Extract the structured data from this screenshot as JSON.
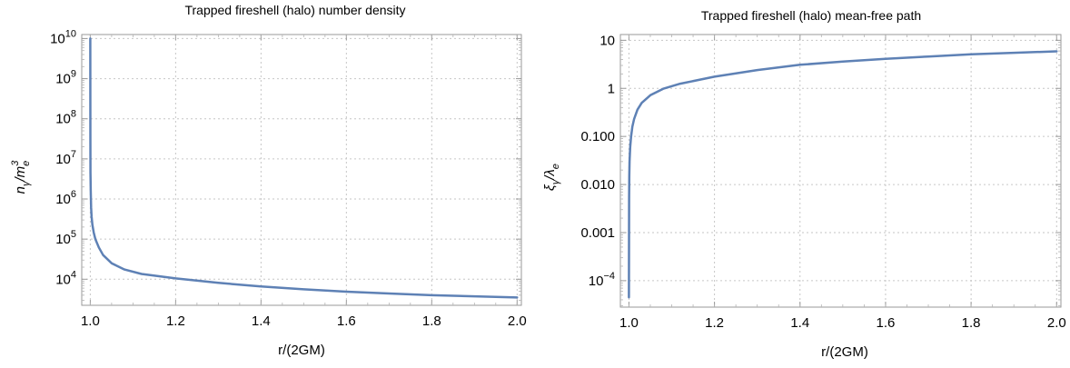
{
  "chart_data": [
    {
      "type": "line",
      "title": "Trapped fireshell (halo) number density",
      "xlabel": "r/(2GM)",
      "ylabel_parts": {
        "n": "n",
        "gamma": "γ",
        "slash": "/m",
        "e": "e",
        "three": "3"
      },
      "y_scale": "log",
      "xlim": [
        0.98,
        2.01
      ],
      "ylim_log10": [
        3.35,
        10.1
      ],
      "x_ticks": [
        {
          "v": 1.0,
          "label": "1.0"
        },
        {
          "v": 1.2,
          "label": "1.2"
        },
        {
          "v": 1.4,
          "label": "1.4"
        },
        {
          "v": 1.6,
          "label": "1.6"
        },
        {
          "v": 1.8,
          "label": "1.8"
        },
        {
          "v": 2.0,
          "label": "2.0"
        }
      ],
      "y_ticks": [
        {
          "e": 4,
          "base": "10",
          "exp": "4"
        },
        {
          "e": 5,
          "base": "10",
          "exp": "5"
        },
        {
          "e": 6,
          "base": "10",
          "exp": "6"
        },
        {
          "e": 7,
          "base": "10",
          "exp": "7"
        },
        {
          "e": 8,
          "base": "10",
          "exp": "8"
        },
        {
          "e": 9,
          "base": "10",
          "exp": "9"
        },
        {
          "e": 10,
          "base": "10",
          "exp": "10"
        }
      ],
      "grid": true,
      "series": [
        {
          "color": "#5e81b5",
          "x": [
            1.0,
            1.0002,
            1.0005,
            1.001,
            1.002,
            1.003,
            1.005,
            1.008,
            1.012,
            1.02,
            1.03,
            1.05,
            1.08,
            1.12,
            1.2,
            1.3,
            1.4,
            1.5,
            1.6,
            1.7,
            1.8,
            1.9,
            2.0
          ],
          "y": [
            10000000000,
            35000000,
            4500000,
            1600000,
            620000,
            370000,
            230000,
            145000,
            100000,
            62000,
            40000,
            25000,
            17500,
            13500,
            10500,
            8100,
            6600,
            5600,
            4900,
            4400,
            4000,
            3750,
            3500
          ]
        }
      ]
    },
    {
      "type": "line",
      "title": "Trapped fireshell (halo) mean-free path",
      "xlabel": "r/(2GM)",
      "ylabel_parts": {
        "xi": "ξ",
        "gamma": "γ",
        "slash": "/",
        "lambda": "λ",
        "e": "e"
      },
      "y_scale": "log",
      "xlim": [
        0.98,
        2.01
      ],
      "ylim_log10": [
        -4.55,
        1.12
      ],
      "x_ticks": [
        {
          "v": 1.0,
          "label": "1.0"
        },
        {
          "v": 1.2,
          "label": "1.2"
        },
        {
          "v": 1.4,
          "label": "1.4"
        },
        {
          "v": 1.6,
          "label": "1.6"
        },
        {
          "v": 1.8,
          "label": "1.8"
        },
        {
          "v": 2.0,
          "label": "2.0"
        }
      ],
      "y_ticks": [
        {
          "e": -4,
          "base": "10",
          "exp": "−4"
        },
        {
          "e": -3,
          "label": "0.001"
        },
        {
          "e": -2,
          "label": "0.010"
        },
        {
          "e": -1,
          "label": "0.100"
        },
        {
          "e": 0,
          "label": "1"
        },
        {
          "e": 1,
          "label": "10"
        }
      ],
      "grid": true,
      "series": [
        {
          "color": "#5e81b5",
          "x": [
            1.0,
            1.0003,
            1.0008,
            1.0015,
            1.003,
            1.005,
            1.008,
            1.012,
            1.02,
            1.03,
            1.05,
            1.08,
            1.12,
            1.2,
            1.3,
            1.4,
            1.5,
            1.6,
            1.7,
            1.8,
            1.9,
            2.0
          ],
          "y": [
            4.5e-05,
            0.005,
            0.015,
            0.03,
            0.06,
            0.1,
            0.16,
            0.23,
            0.36,
            0.5,
            0.72,
            0.98,
            1.25,
            1.75,
            2.4,
            3.1,
            3.6,
            4.1,
            4.6,
            5.1,
            5.5,
            5.9
          ]
        }
      ]
    }
  ]
}
